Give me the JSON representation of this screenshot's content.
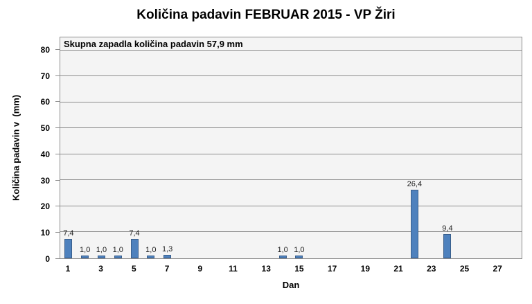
{
  "chart_data": {
    "type": "bar",
    "title": "Količina padavin FEBRUAR 2015 - VP Žiri",
    "annotation": "Skupna zapadla količina padavin 57,9 mm",
    "xlabel": "Dan",
    "ylabel": "Količina padavin v  (mm)",
    "ylim": [
      0,
      85
    ],
    "yticks": [
      0,
      10,
      20,
      30,
      40,
      50,
      60,
      70,
      80
    ],
    "xticks": [
      1,
      3,
      5,
      7,
      9,
      11,
      13,
      15,
      17,
      19,
      21,
      23,
      25,
      27
    ],
    "num_days": 28,
    "grid": true,
    "legend": false,
    "points": [
      {
        "day": 1,
        "value": 7.4,
        "label": "7,4"
      },
      {
        "day": 2,
        "value": 1.0,
        "label": "1,0"
      },
      {
        "day": 3,
        "value": 1.0,
        "label": "1,0"
      },
      {
        "day": 4,
        "value": 1.0,
        "label": "1,0"
      },
      {
        "day": 5,
        "value": 7.4,
        "label": "7,4"
      },
      {
        "day": 6,
        "value": 1.0,
        "label": "1,0"
      },
      {
        "day": 7,
        "value": 1.3,
        "label": "1,3"
      },
      {
        "day": 14,
        "value": 1.0,
        "label": "1,0"
      },
      {
        "day": 15,
        "value": 1.0,
        "label": "1,0"
      },
      {
        "day": 22,
        "value": 26.4,
        "label": "26,4"
      },
      {
        "day": 24,
        "value": 9.4,
        "label": "9,4"
      }
    ],
    "colors": {
      "bar_fill": "#4E81BD",
      "bar_border": "#385D8A",
      "plot_bg": "#F4F4F4",
      "grid": "#8C8C8C",
      "text": "#000000",
      "background": "#FFFFFF"
    }
  }
}
